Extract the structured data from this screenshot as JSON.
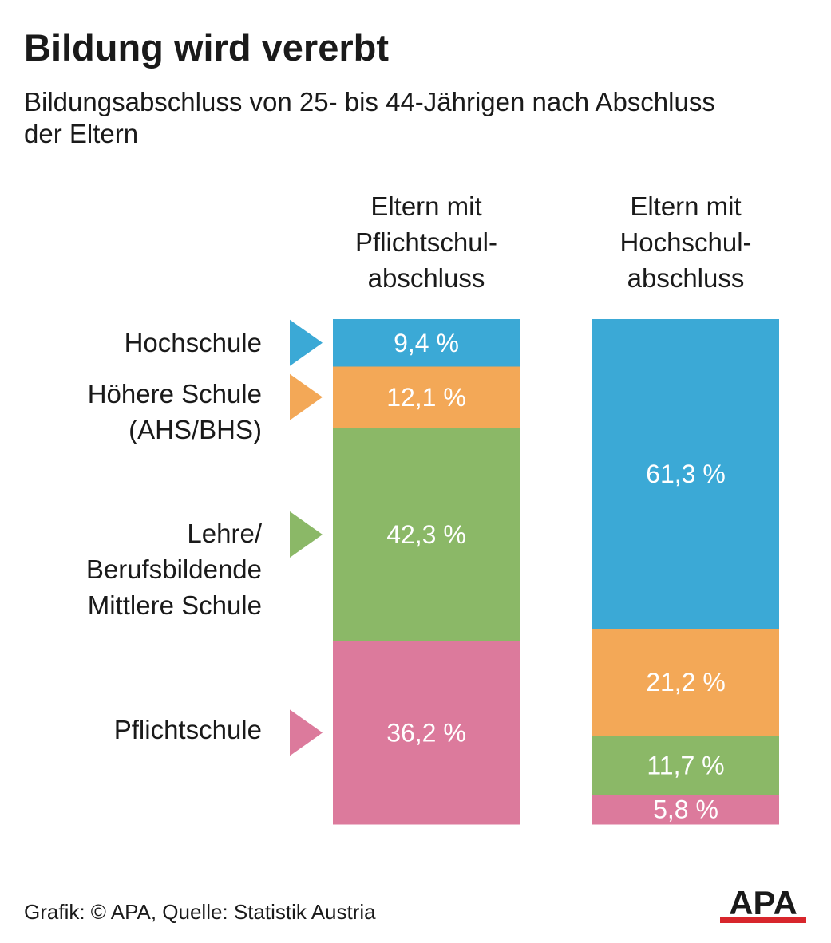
{
  "title": "Bildung wird vererbt",
  "subtitle": "Bildungsabschluss von 25- bis 44-Jährigen nach Abschluss der Eltern",
  "source": "Grafik: © APA, Quelle: Statistik Austria",
  "logo": "APA",
  "colors": {
    "hochschule": "#3ba9d6",
    "hoehere": "#f3a857",
    "lehre": "#8bb867",
    "pflicht": "#dc7a9c",
    "logo_red": "#d8262c"
  },
  "legend": [
    {
      "key": "hochschule",
      "lines": [
        "Hochschule"
      ]
    },
    {
      "key": "hoehere",
      "lines": [
        "Höhere Schule",
        "(AHS/BHS)"
      ]
    },
    {
      "key": "lehre",
      "lines": [
        "Lehre/",
        "Berufsbildende",
        "Mittlere Schule"
      ]
    },
    {
      "key": "pflicht",
      "lines": [
        "Pflichtschule"
      ]
    }
  ],
  "chart_data": {
    "type": "bar",
    "stacked": true,
    "title": "Bildung wird vererbt",
    "subtitle": "Bildungsabschluss von 25- bis 44-Jährigen nach Abschluss der Eltern",
    "unit": "%",
    "categories": [
      {
        "lines": [
          "Eltern mit",
          "Pflichtschul-",
          "abschluss"
        ]
      },
      {
        "lines": [
          "Eltern mit",
          "Hochschul-",
          "abschluss"
        ]
      }
    ],
    "series": [
      {
        "name": "Hochschule",
        "key": "hochschule",
        "values": [
          9.4,
          61.3
        ],
        "labels": [
          "9,4 %",
          "61,3 %"
        ]
      },
      {
        "name": "Höhere Schule (AHS/BHS)",
        "key": "hoehere",
        "values": [
          12.1,
          21.2
        ],
        "labels": [
          "12,1 %",
          "21,2 %"
        ]
      },
      {
        "name": "Lehre/Berufsbildende Mittlere Schule",
        "key": "lehre",
        "values": [
          42.3,
          11.7
        ],
        "labels": [
          "42,3 %",
          "11,7 %"
        ]
      },
      {
        "name": "Pflichtschule",
        "key": "pflicht",
        "values": [
          36.2,
          5.8
        ],
        "labels": [
          "36,2 %",
          "5,8 %"
        ]
      }
    ]
  }
}
